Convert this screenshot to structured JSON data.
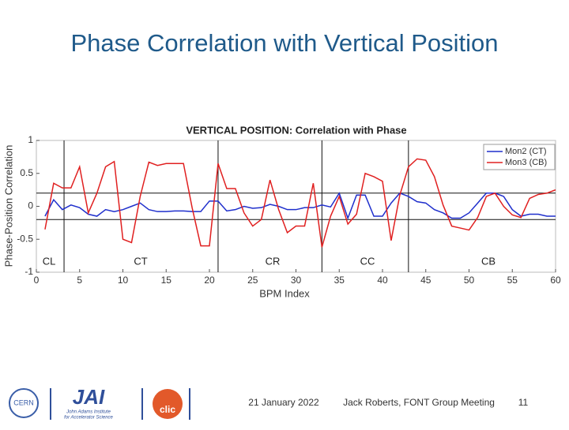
{
  "slide_title": "Phase Correlation with Vertical Position",
  "chart_data": {
    "type": "line",
    "title": "VERTICAL POSITION: Correlation with Phase",
    "x_label": "BPM Index",
    "y_label": "Phase-Position Correlation",
    "x": [
      1,
      2,
      3,
      4,
      5,
      6,
      7,
      8,
      9,
      10,
      11,
      12,
      13,
      14,
      15,
      16,
      17,
      18,
      19,
      20,
      21,
      22,
      23,
      24,
      25,
      26,
      27,
      28,
      29,
      30,
      31,
      32,
      33,
      34,
      35,
      36,
      37,
      38,
      39,
      40,
      41,
      42,
      43,
      44,
      45,
      46,
      47,
      48,
      49,
      50,
      51,
      52,
      53,
      54,
      55,
      56,
      57,
      58,
      59,
      60
    ],
    "series": [
      {
        "name": "Mon2 (CT)",
        "color": "#1f2fcc",
        "values": [
          -0.15,
          0.1,
          -0.05,
          0.02,
          -0.02,
          -0.12,
          -0.15,
          -0.05,
          -0.08,
          -0.05,
          0.0,
          0.05,
          -0.05,
          -0.08,
          -0.08,
          -0.07,
          -0.07,
          -0.08,
          -0.08,
          0.08,
          0.08,
          -0.07,
          -0.05,
          0.0,
          -0.03,
          -0.02,
          0.03,
          0.0,
          -0.05,
          -0.05,
          -0.02,
          -0.02,
          0.02,
          -0.01,
          0.2,
          -0.18,
          0.17,
          0.17,
          -0.15,
          -0.15,
          0.05,
          0.2,
          0.15,
          0.07,
          0.05,
          -0.05,
          -0.1,
          -0.18,
          -0.18,
          -0.1,
          0.05,
          0.2,
          0.2,
          0.15,
          -0.05,
          -0.15,
          -0.12,
          -0.12,
          -0.15,
          -0.15
        ]
      },
      {
        "name": "Mon3 (CB)",
        "color": "#e02020",
        "values": [
          -0.35,
          0.35,
          0.28,
          0.28,
          0.6,
          -0.1,
          0.2,
          0.6,
          0.68,
          -0.5,
          -0.55,
          0.15,
          0.67,
          0.62,
          0.65,
          0.65,
          0.65,
          -0.02,
          -0.6,
          -0.6,
          0.65,
          0.27,
          0.27,
          -0.1,
          -0.3,
          -0.2,
          0.4,
          -0.05,
          -0.4,
          -0.3,
          -0.3,
          0.35,
          -0.62,
          -0.15,
          0.15,
          -0.27,
          -0.12,
          0.5,
          0.45,
          0.38,
          -0.52,
          0.17,
          0.6,
          0.72,
          0.7,
          0.45,
          0.02,
          -0.3,
          -0.33,
          -0.36,
          -0.17,
          0.15,
          0.2,
          0.0,
          -0.13,
          -0.17,
          0.12,
          0.18,
          0.2,
          0.25
        ]
      }
    ],
    "xlim": [
      0,
      60
    ],
    "xticks": [
      0,
      5,
      10,
      15,
      20,
      25,
      30,
      35,
      40,
      45,
      50,
      55,
      60
    ],
    "ylim": [
      -1,
      1
    ],
    "yticks": [
      -1,
      -0.5,
      0,
      0.5,
      1
    ],
    "hlines": [
      -0.2,
      0.2
    ],
    "vlines": [
      3.2,
      21,
      33,
      43
    ],
    "regions": [
      "CL",
      "CT",
      "CR",
      "CC",
      "CB"
    ],
    "grid": false,
    "legend": "upper right"
  },
  "footer": {
    "date": "21 January 2022",
    "author": "Jack Roberts, FONT Group Meeting",
    "page": "11",
    "logos": [
      "CERN",
      "JAI",
      "John Adams Institute",
      "for Accelerator Science",
      "clic"
    ]
  }
}
